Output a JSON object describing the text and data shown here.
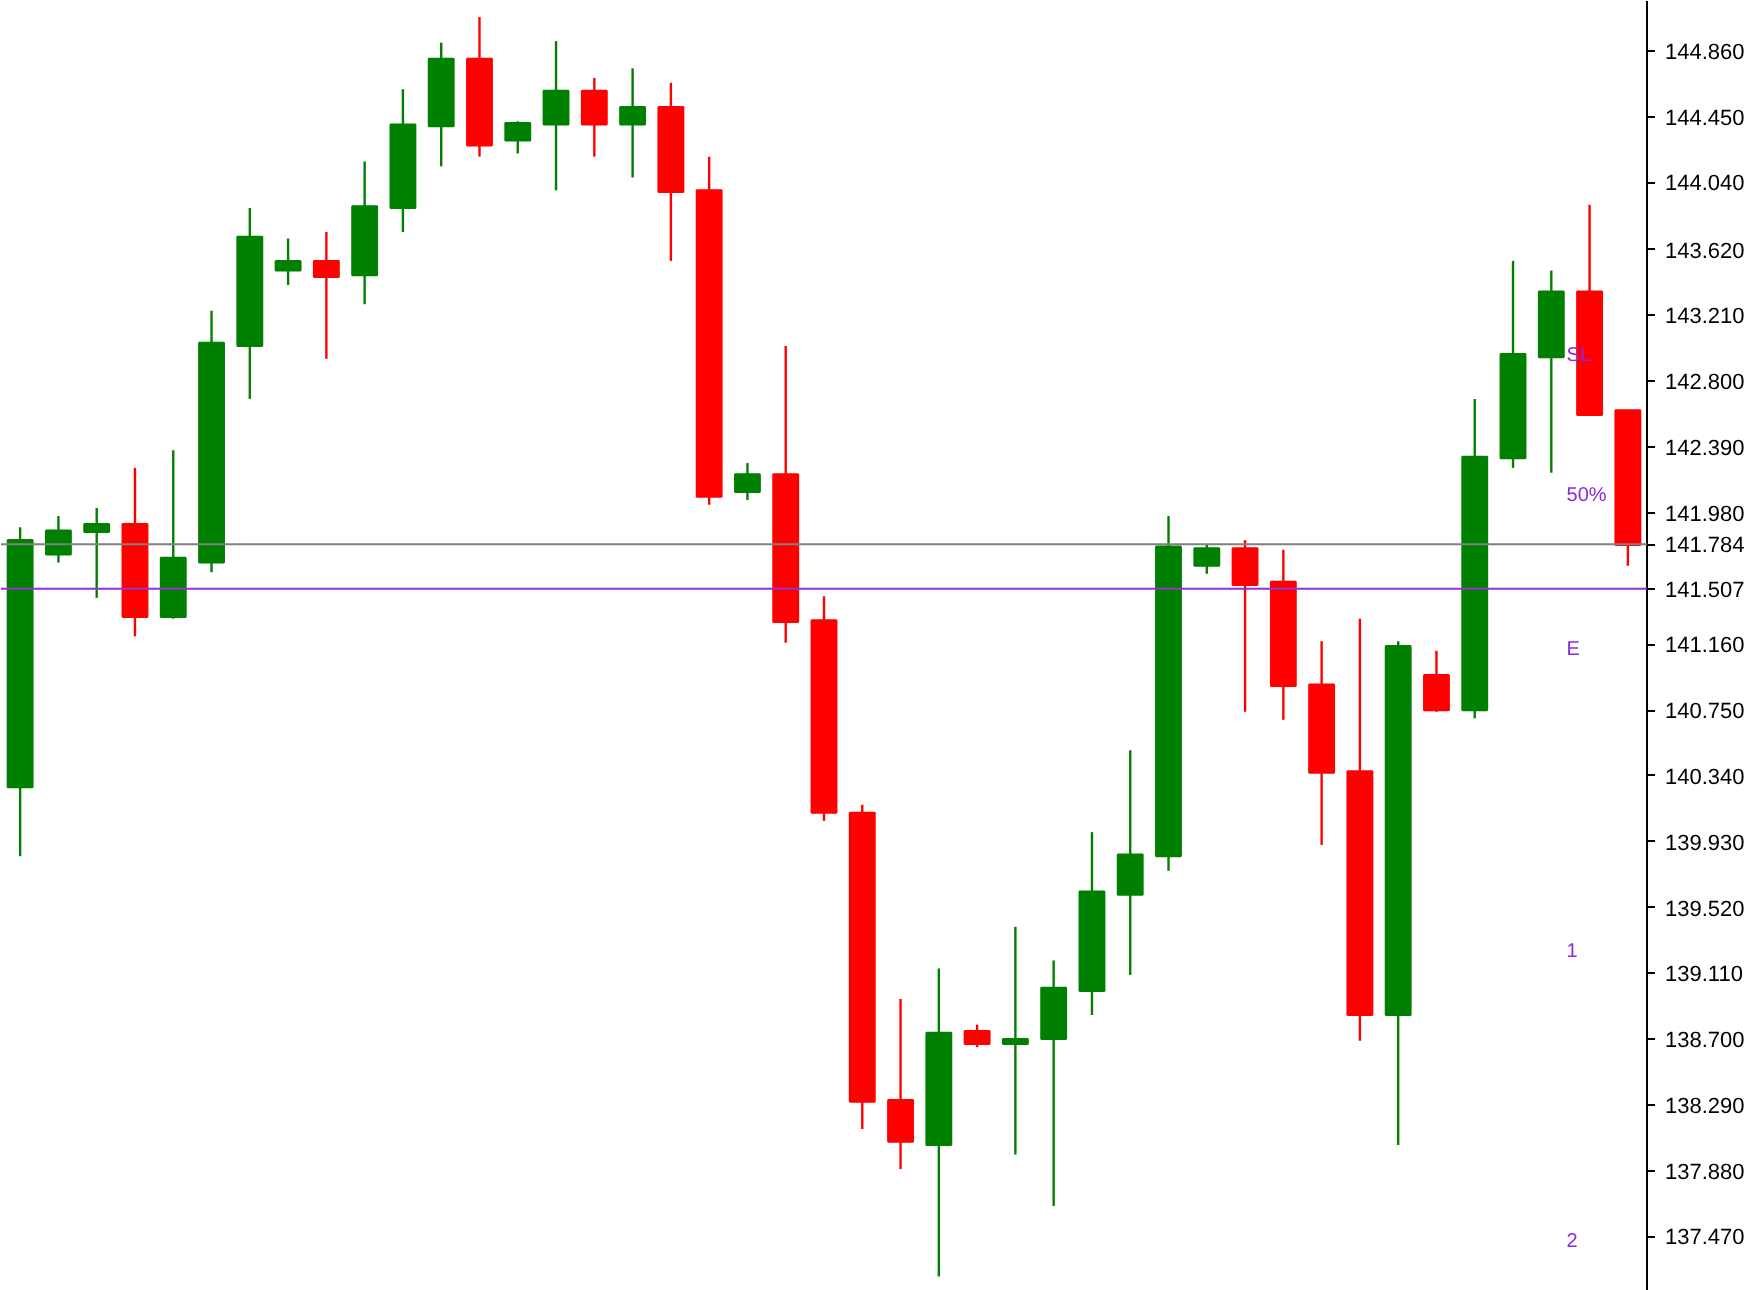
{
  "chart_data": {
    "type": "candlestick",
    "categories": [
      null,
      null,
      null,
      null,
      null,
      null,
      null,
      null,
      null,
      null,
      null,
      null,
      null,
      null,
      null,
      null,
      null,
      null,
      null,
      null,
      null,
      null,
      null,
      null,
      null,
      null,
      null,
      null,
      null,
      null,
      null,
      null,
      null,
      null,
      null,
      null,
      null,
      null,
      null,
      null,
      null,
      null,
      null
    ],
    "ohlc": [
      [
        140.27,
        141.89,
        139.84,
        141.81
      ],
      [
        141.72,
        141.96,
        141.67,
        141.87
      ],
      [
        141.86,
        142.01,
        141.45,
        141.91
      ],
      [
        141.91,
        142.26,
        141.21,
        141.33
      ],
      [
        141.33,
        142.37,
        141.32,
        141.7
      ],
      [
        141.67,
        143.24,
        141.61,
        143.04
      ],
      [
        143.02,
        143.88,
        142.69,
        143.7
      ],
      [
        143.49,
        143.69,
        143.4,
        143.55
      ],
      [
        143.55,
        143.73,
        142.94,
        143.45
      ],
      [
        143.46,
        144.17,
        143.28,
        143.89
      ],
      [
        143.88,
        144.62,
        143.73,
        144.4
      ],
      [
        144.39,
        144.91,
        144.14,
        144.81
      ],
      [
        144.81,
        145.07,
        144.2,
        144.27
      ],
      [
        144.3,
        144.42,
        144.22,
        144.41
      ],
      [
        144.4,
        144.92,
        143.99,
        144.61
      ],
      [
        144.61,
        144.69,
        144.2,
        144.4
      ],
      [
        144.4,
        144.75,
        144.07,
        144.51
      ],
      [
        144.51,
        144.66,
        143.55,
        143.98
      ],
      [
        143.99,
        144.2,
        142.03,
        142.08
      ],
      [
        142.11,
        142.29,
        142.06,
        142.22
      ],
      [
        142.22,
        143.02,
        141.17,
        141.3
      ],
      [
        141.31,
        141.46,
        140.06,
        140.11
      ],
      [
        140.11,
        140.16,
        138.14,
        138.31
      ],
      [
        138.32,
        138.95,
        137.89,
        138.06
      ],
      [
        138.04,
        139.14,
        137.22,
        138.74
      ],
      [
        138.75,
        138.79,
        138.65,
        138.67
      ],
      [
        138.67,
        139.4,
        137.98,
        138.7
      ],
      [
        138.7,
        139.19,
        137.66,
        139.02
      ],
      [
        139.0,
        139.99,
        138.85,
        139.62
      ],
      [
        139.6,
        140.5,
        139.1,
        139.85
      ],
      [
        139.84,
        141.96,
        139.75,
        141.77
      ],
      [
        141.65,
        141.78,
        141.6,
        141.76
      ],
      [
        141.76,
        141.81,
        140.74,
        141.53
      ],
      [
        141.55,
        141.75,
        140.69,
        140.9
      ],
      [
        140.91,
        141.18,
        139.91,
        140.36
      ],
      [
        140.37,
        141.32,
        138.69,
        138.85
      ],
      [
        138.85,
        141.18,
        138.04,
        141.15
      ],
      [
        140.97,
        141.12,
        140.74,
        140.75
      ],
      [
        140.75,
        142.69,
        140.7,
        142.33
      ],
      [
        142.32,
        143.55,
        142.26,
        142.97
      ],
      [
        142.95,
        143.49,
        142.23,
        143.36
      ],
      [
        143.36,
        143.9,
        142.59,
        142.59
      ],
      [
        142.62,
        142.62,
        141.65,
        141.78
      ]
    ],
    "colors": [
      "#008000",
      "#008000",
      "#008000",
      "#ff0000",
      "#008000",
      "#008000",
      "#008000",
      "#008000",
      "#ff0000",
      "#008000",
      "#008000",
      "#008000",
      "#ff0000",
      "#008000",
      "#008000",
      "#ff0000",
      "#008000",
      "#ff0000",
      "#ff0000",
      "#008000",
      "#ff0000",
      "#ff0000",
      "#ff0000",
      "#ff0000",
      "#008000",
      "#ff0000",
      "#008000",
      "#008000",
      "#008000",
      "#008000",
      "#008000",
      "#008000",
      "#ff0000",
      "#ff0000",
      "#ff0000",
      "#ff0000",
      "#008000",
      "#ff0000",
      "#008000",
      "#008000",
      "#008000",
      "#ff0000",
      "#ff0000"
    ],
    "ylim": [
      137.13,
      145.17
    ],
    "yticks": [
      {
        "value": 144.86,
        "label": "144.860"
      },
      {
        "value": 144.45,
        "label": "144.450"
      },
      {
        "value": 144.04,
        "label": "144.040"
      },
      {
        "value": 143.62,
        "label": "143.620"
      },
      {
        "value": 143.21,
        "label": "143.210"
      },
      {
        "value": 142.8,
        "label": "142.800"
      },
      {
        "value": 142.39,
        "label": "142.390"
      },
      {
        "value": 141.98,
        "label": "141.980"
      },
      {
        "value": 141.16,
        "label": "141.160"
      },
      {
        "value": 140.75,
        "label": "140.750"
      },
      {
        "value": 140.34,
        "label": "140.340"
      },
      {
        "value": 139.93,
        "label": "139.930"
      },
      {
        "value": 139.52,
        "label": "139.520"
      },
      {
        "value": 139.11,
        "label": "139.110"
      },
      {
        "value": 138.7,
        "label": "138.700"
      },
      {
        "value": 138.29,
        "label": "138.290"
      },
      {
        "value": 137.88,
        "label": "137.880"
      },
      {
        "value": 137.47,
        "label": "137.470"
      }
    ],
    "tick_labels": "y",
    "grid": false,
    "ref_lines": [
      {
        "axis": "y",
        "value": 141.784,
        "label": "141.784",
        "color": "#808080"
      },
      {
        "axis": "y",
        "value": 141.507,
        "label": "141.507",
        "color": "#9932cc"
      }
    ],
    "annotations": [
      "SL",
      "50%",
      "E",
      "1",
      "2"
    ]
  }
}
